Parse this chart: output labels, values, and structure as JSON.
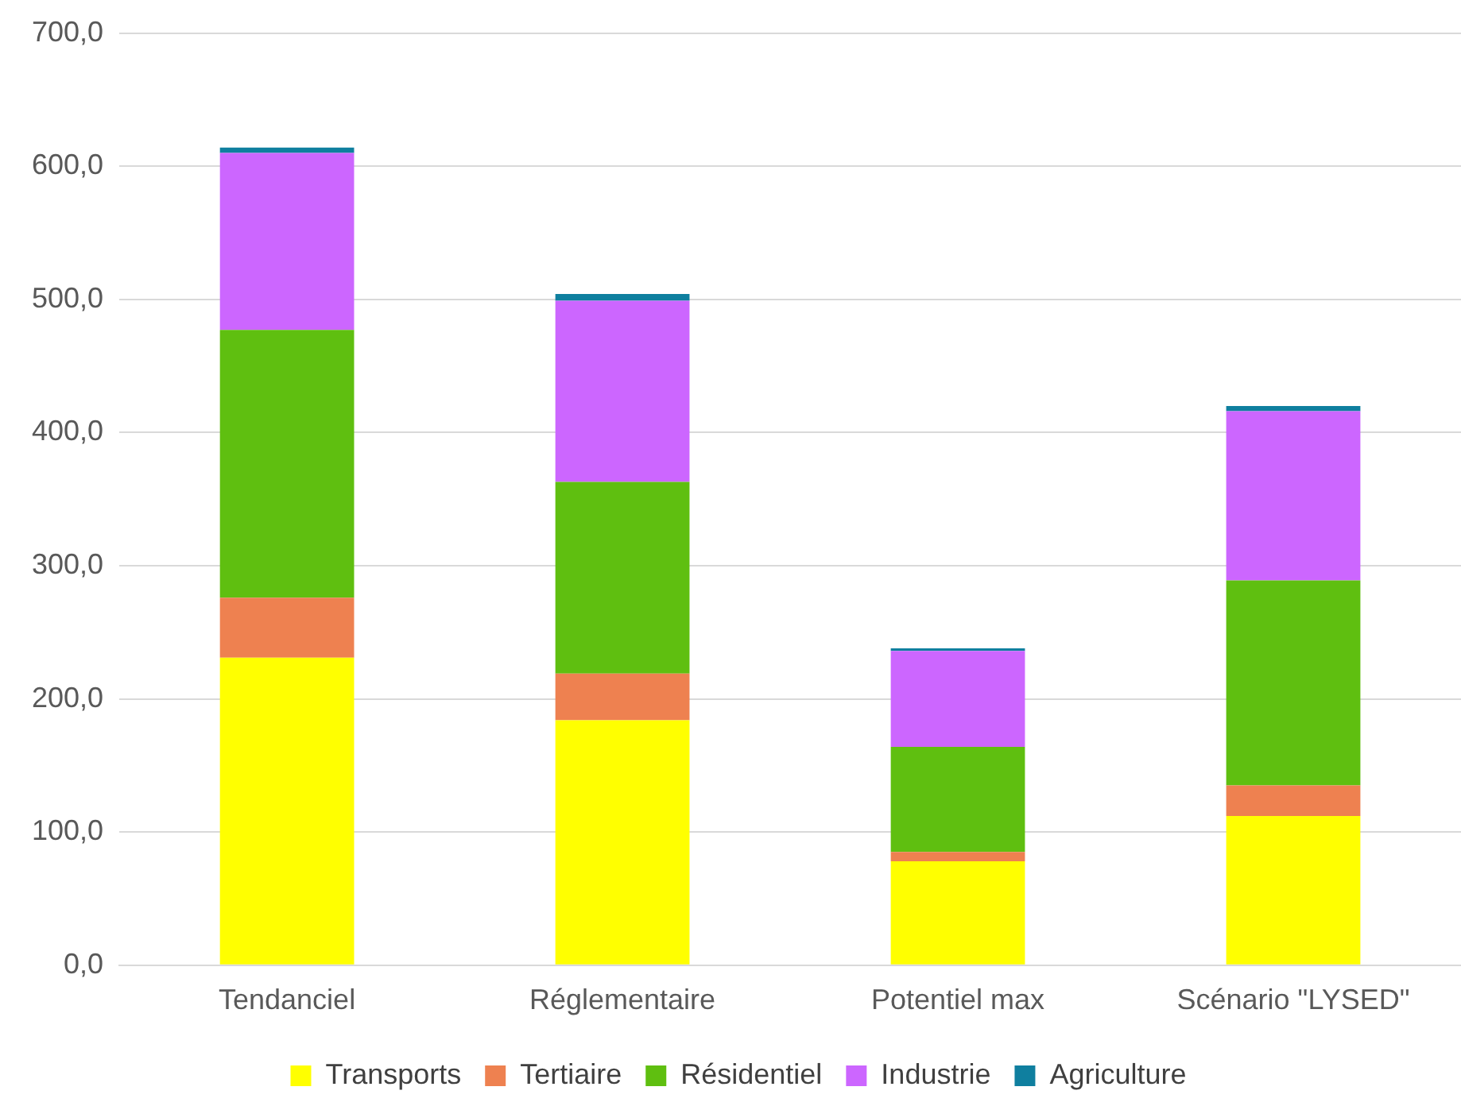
{
  "chart_data": {
    "type": "bar",
    "stacked": true,
    "categories": [
      "Tendanciel",
      "Réglementaire",
      "Potentiel max",
      "Scénario \"LYSED\""
    ],
    "series": [
      {
        "name": "Transports",
        "color": "#ffff00",
        "values": [
          231,
          184,
          78,
          112
        ]
      },
      {
        "name": "Tertiaire",
        "color": "#ee8150",
        "values": [
          45,
          35,
          7,
          23
        ]
      },
      {
        "name": "Résidentiel",
        "color": "#5fbf10",
        "values": [
          201,
          144,
          79,
          154
        ]
      },
      {
        "name": "Industrie",
        "color": "#cc66ff",
        "values": [
          133,
          136,
          72,
          127
        ]
      },
      {
        "name": "Agriculture",
        "color": "#0f7f9f",
        "values": [
          4,
          5,
          2,
          4
        ]
      }
    ],
    "ylim": [
      0,
      700
    ],
    "yticks": [
      {
        "value": 0,
        "label": "0,0"
      },
      {
        "value": 100,
        "label": "100,0"
      },
      {
        "value": 200,
        "label": "200,0"
      },
      {
        "value": 300,
        "label": "300,0"
      },
      {
        "value": 400,
        "label": "400,0"
      },
      {
        "value": 500,
        "label": "500,0"
      },
      {
        "value": 600,
        "label": "600,0"
      },
      {
        "value": 700,
        "label": "700,0"
      }
    ],
    "grid": "y",
    "legend": "bottom"
  }
}
